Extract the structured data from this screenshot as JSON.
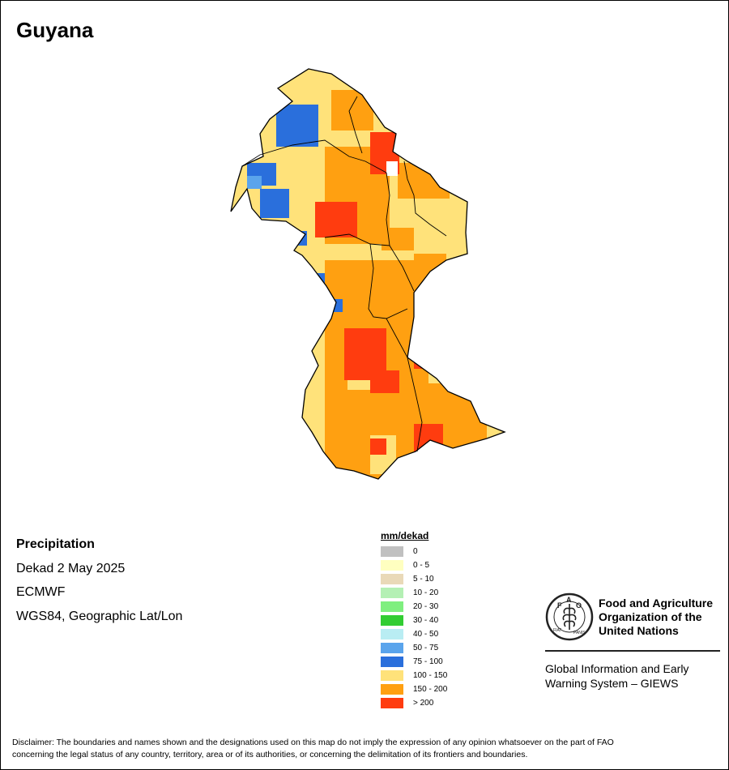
{
  "map_title": "Guyana",
  "info": {
    "variable": "Precipitation",
    "period": "Dekad 2 May 2025",
    "source": "ECMWF",
    "projection": "WGS84, Geographic Lat/Lon"
  },
  "legend": {
    "title": "mm/dekad",
    "classes": [
      {
        "label": "0",
        "color": "#c0c0c0"
      },
      {
        "label": "0 - 5",
        "color": "#ffffc0"
      },
      {
        "label": "5 - 10",
        "color": "#e9d9b8"
      },
      {
        "label": "10 - 20",
        "color": "#b4f0b4"
      },
      {
        "label": "20 - 30",
        "color": "#7fef7f"
      },
      {
        "label": "30 - 40",
        "color": "#32cd32"
      },
      {
        "label": "40 - 50",
        "color": "#b9edf3"
      },
      {
        "label": "50 - 75",
        "color": "#5aa4ec"
      },
      {
        "label": "75 - 100",
        "color": "#2a6fdc"
      },
      {
        "label": "100 - 150",
        "color": "#ffe27a"
      },
      {
        "label": "150 - 200",
        "color": "#ffa011"
      },
      {
        "label": "> 200",
        "color": "#ff3c0f"
      }
    ]
  },
  "logo": {
    "org_line1": "Food and Agriculture",
    "org_line2": "Organization of the",
    "org_line3": "United Nations",
    "emblem_text": "FAO",
    "emblem_motto": "FIAT PANIS",
    "system_line1": "Global Information and Early",
    "system_line2": "Warning System – GIEWS"
  },
  "disclaimer_line1": "Disclaimer: The boundaries and names shown and the designations used on this map do not imply the expression of any opinion whatsoever on the part of FAO",
  "disclaimer_line2": "concerning the legal status of any country, territory, area or of its authorities, or concerning the delimitation of its frontiers and boundaries."
}
